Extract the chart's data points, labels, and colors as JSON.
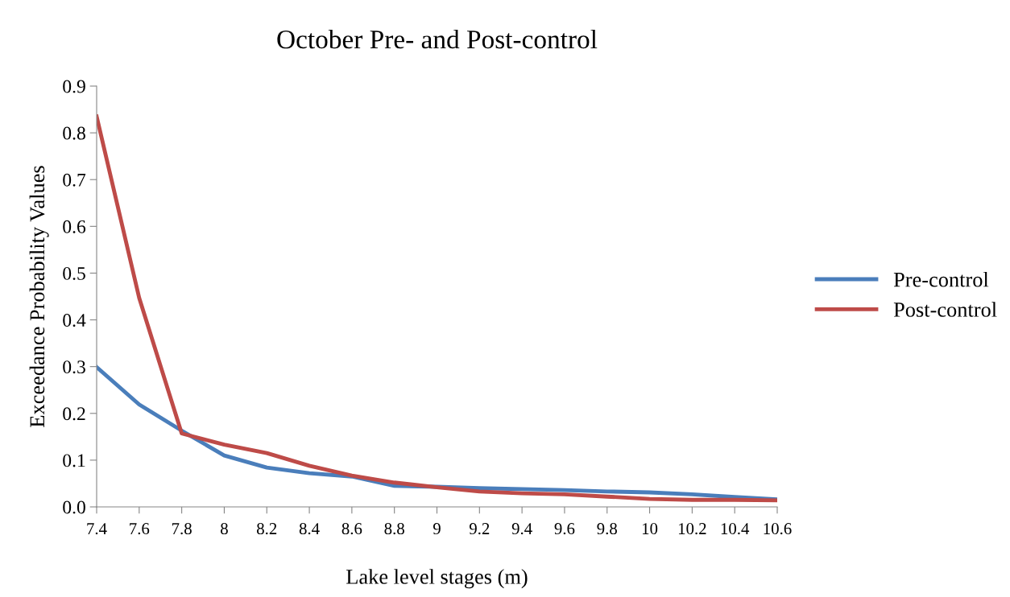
{
  "chart_data": {
    "type": "line",
    "title": "October Pre- and Post-control",
    "xlabel": "Lake level stages (m)",
    "ylabel": "Exceedance Probability Values",
    "categories": [
      "7.4",
      "7.6",
      "7.8",
      "8",
      "8.2",
      "8.4",
      "8.6",
      "8.8",
      "9",
      "9.2",
      "9.4",
      "9.6",
      "9.8",
      "10",
      "10.2",
      "10.4",
      "10.6"
    ],
    "series": [
      {
        "name": "Pre-control",
        "color": "#4a7ebb",
        "values": [
          0.299,
          0.219,
          0.163,
          0.11,
          0.084,
          0.072,
          0.065,
          0.045,
          0.043,
          0.04,
          0.038,
          0.036,
          0.033,
          0.031,
          0.027,
          0.021,
          0.016
        ]
      },
      {
        "name": "Post-control",
        "color": "#be4b48",
        "values": [
          0.835,
          0.447,
          0.157,
          0.133,
          0.115,
          0.088,
          0.067,
          0.052,
          0.042,
          0.033,
          0.029,
          0.027,
          0.022,
          0.017,
          0.015,
          0.015,
          0.014
        ]
      }
    ],
    "ylim": [
      0,
      0.9
    ],
    "yticks": [
      {
        "value": 0,
        "label": "0.0"
      },
      0.1,
      0.2,
      0.3,
      0.4,
      0.5,
      0.6,
      0.7,
      0.8,
      0.9
    ],
    "grid": false,
    "legend": "right",
    "marker": "none",
    "line_style": "solid"
  }
}
